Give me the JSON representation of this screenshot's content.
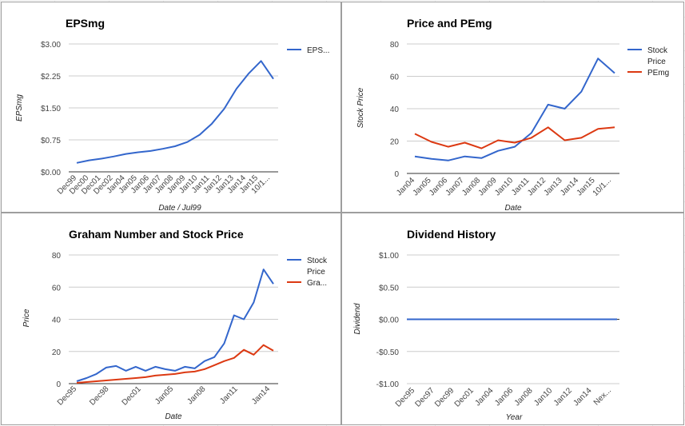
{
  "chart_data": [
    {
      "type": "line",
      "title": "EPSmg",
      "xlabel": "Date / Jul99",
      "ylabel": "EPSmg",
      "ylim": [
        0,
        3
      ],
      "yticks": [
        0,
        0.75,
        1.5,
        2.25,
        3
      ],
      "ytick_labels": [
        "$0.00",
        "$0.75",
        "$1.50",
        "$2.25",
        "$3.00"
      ],
      "tick_labels": [
        "Dec99",
        "Dec00",
        "Dec01",
        "Dec02",
        "Jan04",
        "Jan05",
        "Jan06",
        "Jan07",
        "Jan08",
        "Jan09",
        "Jan10",
        "Jan11",
        "Jan12",
        "Jan13",
        "Jan14",
        "Jan15",
        "10/1..."
      ],
      "grid": true,
      "legend_position": "right",
      "series": [
        {
          "name": "EPS...",
          "color": "#3366cc",
          "values": [
            0.21,
            0.27,
            0.31,
            0.36,
            0.42,
            0.46,
            0.49,
            0.54,
            0.6,
            0.7,
            0.87,
            1.13,
            1.48,
            1.95,
            2.31,
            2.6,
            2.18
          ]
        }
      ]
    },
    {
      "type": "line",
      "title": "Price and PEmg",
      "xlabel": "Date",
      "ylabel": "Stock Price",
      "ylim": [
        0,
        80
      ],
      "yticks": [
        0,
        20,
        40,
        60,
        80
      ],
      "ytick_labels": [
        "0",
        "20",
        "40",
        "60",
        "80"
      ],
      "tick_labels": [
        "Jan04",
        "Jan05",
        "Jan06",
        "Jan07",
        "Jan08",
        "Jan09",
        "Jan10",
        "Jan11",
        "Jan12",
        "Jan13",
        "Jan14",
        "Jan15",
        "10/1..."
      ],
      "grid": true,
      "legend_position": "right",
      "series": [
        {
          "name": "Stock Price",
          "color": "#3366cc",
          "values": [
            10.5,
            9,
            8,
            10.5,
            9.5,
            14,
            16.5,
            25,
            42.5,
            40,
            50.5,
            71,
            62
          ]
        },
        {
          "name": "PEmg",
          "color": "#dc3912",
          "values": [
            24.5,
            19.5,
            16.5,
            19,
            15.5,
            20.5,
            19,
            22,
            28.5,
            20.5,
            22,
            27.5,
            28.5
          ]
        }
      ]
    },
    {
      "type": "line",
      "title": "Graham Number and Stock Price",
      "xlabel": "Date",
      "ylabel": "Price",
      "ylim": [
        0,
        80
      ],
      "yticks": [
        0,
        20,
        40,
        60,
        80
      ],
      "ytick_labels": [
        "0",
        "20",
        "40",
        "60",
        "80"
      ],
      "tick_labels": [
        "Dec95",
        "Dec98",
        "Dec01",
        "Jan05",
        "Jan08",
        "Jan11",
        "Jan14"
      ],
      "grid": true,
      "legend_position": "right",
      "series": [
        {
          "name": "Stock Price",
          "color": "#3366cc",
          "values": [
            1.5,
            3.5,
            6,
            10,
            11,
            8,
            10.5,
            8,
            10.5,
            9,
            8,
            10.5,
            9.5,
            14,
            16.5,
            25,
            42.5,
            40,
            50.5,
            71,
            62
          ]
        },
        {
          "name": "Gra...",
          "color": "#dc3912",
          "values": [
            0.5,
            1,
            1.5,
            2,
            2.5,
            3,
            3.5,
            4,
            5,
            5.5,
            6,
            7,
            7.5,
            9,
            11.5,
            14,
            16,
            21,
            18,
            24,
            20.5
          ]
        }
      ]
    },
    {
      "type": "line",
      "title": "Dividend History",
      "xlabel": "Year",
      "ylabel": "Dividend",
      "ylim": [
        -1,
        1
      ],
      "yticks": [
        -1,
        -0.5,
        0,
        0.5,
        1
      ],
      "ytick_labels": [
        "-$1.00",
        "-$0.50",
        "$0.00",
        "$0.50",
        "$1.00"
      ],
      "tick_labels": [
        "Dec95",
        "Dec97",
        "Dec99",
        "Dec01",
        "Jan04",
        "Jan06",
        "Jan08",
        "Jan10",
        "Jan12",
        "Jan14",
        "Nex..."
      ],
      "grid": true,
      "legend_position": "none",
      "series": [
        {
          "color": "#3366cc",
          "values": [
            0,
            0,
            0,
            0,
            0,
            0,
            0,
            0,
            0,
            0,
            0
          ]
        }
      ]
    }
  ]
}
